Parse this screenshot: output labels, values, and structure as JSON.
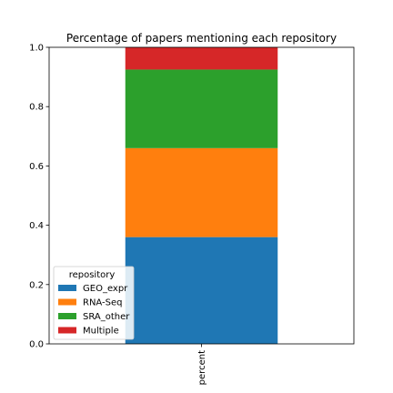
{
  "chart_data": {
    "type": "bar",
    "stacked": true,
    "title": "Percentage of papers mentioning each repository",
    "categories": [
      "percent"
    ],
    "series": [
      {
        "name": "GEO_expr",
        "values": [
          0.36
        ],
        "color": "#1f77b4"
      },
      {
        "name": "RNA-Seq",
        "values": [
          0.3
        ],
        "color": "#ff7f0e"
      },
      {
        "name": "SRA_other",
        "values": [
          0.265
        ],
        "color": "#2ca02c"
      },
      {
        "name": "Multiple",
        "values": [
          0.075
        ],
        "color": "#d62728"
      }
    ],
    "xlabel": "",
    "ylabel": "",
    "ylim": [
      0,
      1.0
    ],
    "yticks": [
      "0.0",
      "0.2",
      "0.4",
      "0.6",
      "0.8",
      "1.0"
    ],
    "grid": false,
    "legend": {
      "title": "repository",
      "placement": "lower-left"
    }
  }
}
